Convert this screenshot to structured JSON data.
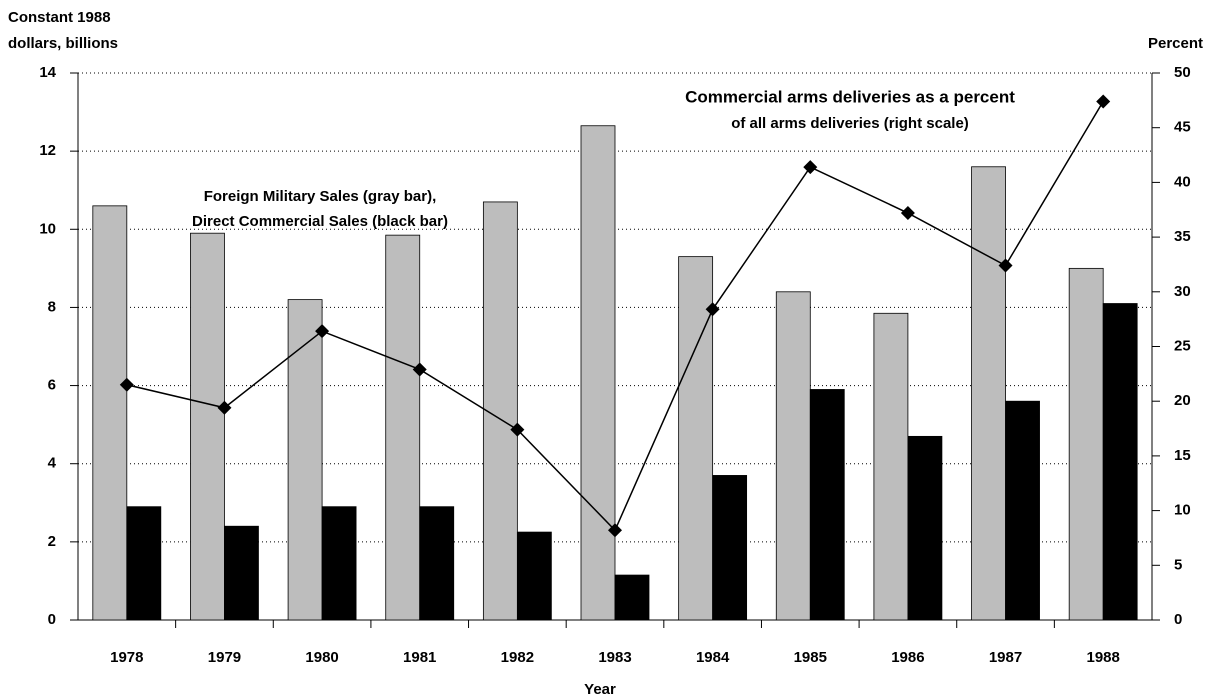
{
  "chart_data": {
    "type": "bar_line",
    "y_label_lines": [
      "Constant 1988",
      "dollars, billions"
    ],
    "y2_label": "Percent",
    "x_label": "Year",
    "annotations": [
      "Foreign Military Sales (gray bar),",
      "Direct Commercial Sales (black bar)",
      "Commercial arms deliveries as a percent",
      "of all arms deliveries (right scale)"
    ],
    "categories": [
      "1978",
      "1979",
      "1980",
      "1981",
      "1982",
      "1983",
      "1984",
      "1985",
      "1986",
      "1987",
      "1988"
    ],
    "series": [
      {
        "name": "Foreign Military Sales",
        "color": "#bdbdbd",
        "values": [
          10.6,
          9.9,
          8.2,
          9.85,
          10.7,
          12.65,
          9.3,
          8.4,
          7.85,
          11.6,
          9.0
        ]
      },
      {
        "name": "Direct Commercial Sales",
        "color": "#000000",
        "values": [
          2.9,
          2.4,
          2.9,
          2.9,
          2.25,
          1.15,
          3.7,
          5.9,
          4.7,
          5.6,
          8.1
        ]
      },
      {
        "name": "Commercial share",
        "color": "#000000",
        "axis": "y2",
        "values": [
          21.5,
          19.4,
          26.4,
          22.9,
          17.4,
          8.2,
          28.4,
          41.4,
          37.2,
          32.4,
          47.4
        ]
      }
    ],
    "ylim": [
      0,
      14
    ],
    "yticks": [
      0,
      2,
      4,
      6,
      8,
      10,
      12,
      14
    ],
    "y2lim": [
      0,
      50
    ],
    "y2ticks": [
      0,
      5,
      10,
      15,
      20,
      25,
      30,
      35,
      40,
      45,
      50
    ],
    "grid": true
  }
}
